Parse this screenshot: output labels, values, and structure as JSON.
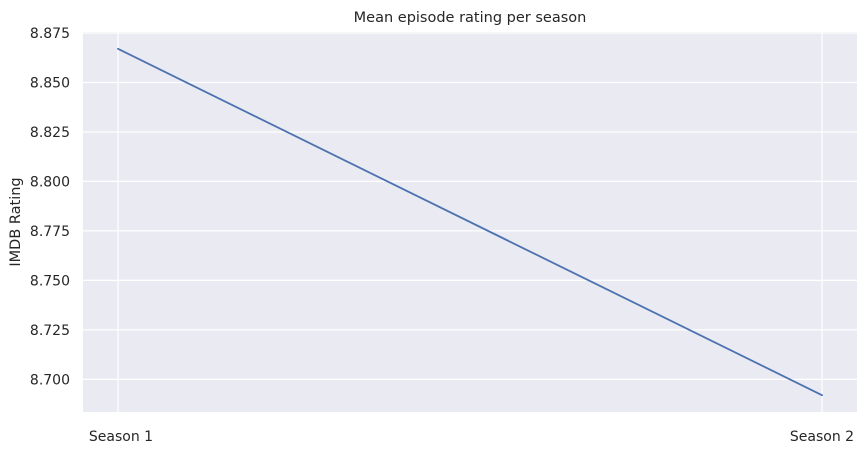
{
  "chart_data": {
    "type": "line",
    "title": "Mean episode rating per season",
    "xlabel": "",
    "ylabel": "IMDB Rating",
    "categories": [
      "Season 1",
      "Season 2"
    ],
    "series": [
      {
        "values": [
          8.867,
          8.692
        ],
        "color": "#4c72b0"
      }
    ],
    "ylim": [
      8.6835,
      8.8755
    ],
    "yticks": [
      "8.700",
      "8.725",
      "8.750",
      "8.775",
      "8.800",
      "8.825",
      "8.850",
      "8.875"
    ],
    "grid": true,
    "legend": "none",
    "background": "#eaeaf2"
  }
}
